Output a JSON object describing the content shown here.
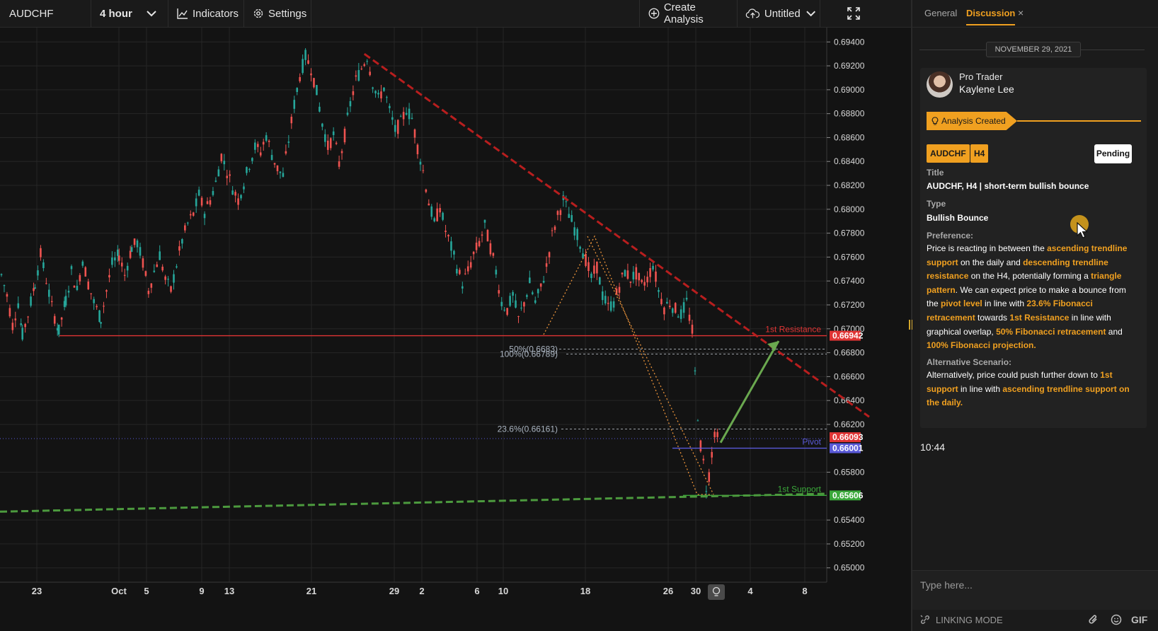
{
  "toolbar": {
    "symbol": "AUDCHF",
    "interval": "4 hour",
    "indicators": "Indicators",
    "settings": "Settings",
    "create_analysis": "Create Analysis",
    "layout_name": "Untitled"
  },
  "chart_data": {
    "type": "candlestick",
    "symbol": "AUDCHF",
    "timeframe": "4 hour",
    "y_ticks": [
      "0.69400",
      "0.69200",
      "0.69000",
      "0.68800",
      "0.68600",
      "0.68400",
      "0.68200",
      "0.68000",
      "0.67800",
      "0.67600",
      "0.67400",
      "0.67200",
      "0.67000",
      "0.66800",
      "0.66600",
      "0.66400",
      "0.66200",
      "0.65800",
      "0.65400",
      "0.65200",
      "0.65000"
    ],
    "x_ticks": [
      "23",
      "Oct",
      "5",
      "9",
      "13",
      "21",
      "29",
      "2",
      "6",
      "10",
      "18",
      "26",
      "30",
      "4",
      "8"
    ],
    "ylim": [
      0.6488,
      0.6952
    ],
    "path_points": [
      [
        0,
        0.6745
      ],
      [
        8,
        0.6728
      ],
      [
        16,
        0.6703
      ],
      [
        24,
        0.6722
      ],
      [
        30,
        0.6695
      ],
      [
        38,
        0.6712
      ],
      [
        48,
        0.6738
      ],
      [
        56,
        0.6762
      ],
      [
        64,
        0.6741
      ],
      [
        72,
        0.6718
      ],
      [
        82,
        0.6698
      ],
      [
        92,
        0.6724
      ],
      [
        100,
        0.6748
      ],
      [
        108,
        0.6732
      ],
      [
        116,
        0.6758
      ],
      [
        124,
        0.6738
      ],
      [
        132,
        0.6722
      ],
      [
        142,
        0.6708
      ],
      [
        150,
        0.6732
      ],
      [
        158,
        0.6754
      ],
      [
        168,
        0.6762
      ],
      [
        176,
        0.6745
      ],
      [
        186,
        0.6768
      ],
      [
        194,
        0.6772
      ],
      [
        202,
        0.6755
      ],
      [
        210,
        0.6732
      ],
      [
        218,
        0.6748
      ],
      [
        226,
        0.6762
      ],
      [
        234,
        0.6741
      ],
      [
        242,
        0.6732
      ],
      [
        250,
        0.6754
      ],
      [
        258,
        0.6774
      ],
      [
        266,
        0.6788
      ],
      [
        274,
        0.6796
      ],
      [
        282,
        0.6812
      ],
      [
        290,
        0.6798
      ],
      [
        298,
        0.6808
      ],
      [
        306,
        0.6822
      ],
      [
        314,
        0.6845
      ],
      [
        322,
        0.6832
      ],
      [
        330,
        0.6818
      ],
      [
        338,
        0.6808
      ],
      [
        346,
        0.6822
      ],
      [
        354,
        0.6838
      ],
      [
        362,
        0.6852
      ],
      [
        370,
        0.6848
      ],
      [
        378,
        0.6862
      ],
      [
        386,
        0.6846
      ],
      [
        394,
        0.6834
      ],
      [
        402,
        0.6828
      ],
      [
        410,
        0.6858
      ],
      [
        418,
        0.6888
      ],
      [
        426,
        0.6912
      ],
      [
        434,
        0.6928
      ],
      [
        442,
        0.6918
      ],
      [
        450,
        0.6898
      ],
      [
        458,
        0.6872
      ],
      [
        466,
        0.6852
      ],
      [
        474,
        0.6862
      ],
      [
        482,
        0.6838
      ],
      [
        490,
        0.6862
      ],
      [
        498,
        0.6888
      ],
      [
        506,
        0.6908
      ],
      [
        514,
        0.6918
      ],
      [
        522,
        0.6928
      ],
      [
        530,
        0.6906
      ],
      [
        538,
        0.6892
      ],
      [
        546,
        0.6902
      ],
      [
        554,
        0.6882
      ],
      [
        562,
        0.6866
      ],
      [
        570,
        0.6872
      ],
      [
        578,
        0.6884
      ],
      [
        586,
        0.6876
      ],
      [
        594,
        0.6852
      ],
      [
        602,
        0.6832
      ],
      [
        610,
        0.6806
      ],
      [
        618,
        0.6788
      ],
      [
        626,
        0.6802
      ],
      [
        634,
        0.6782
      ],
      [
        642,
        0.6768
      ],
      [
        650,
        0.6752
      ],
      [
        658,
        0.6738
      ],
      [
        666,
        0.6748
      ],
      [
        674,
        0.6762
      ],
      [
        682,
        0.6772
      ],
      [
        690,
        0.6786
      ],
      [
        698,
        0.6768
      ],
      [
        706,
        0.6748
      ],
      [
        714,
        0.6722
      ],
      [
        722,
        0.6716
      ],
      [
        730,
        0.6728
      ],
      [
        738,
        0.6708
      ],
      [
        746,
        0.6722
      ],
      [
        754,
        0.6738
      ],
      [
        762,
        0.6722
      ],
      [
        770,
        0.6734
      ],
      [
        778,
        0.6752
      ],
      [
        786,
        0.6778
      ],
      [
        794,
        0.6794
      ],
      [
        802,
        0.6808
      ],
      [
        810,
        0.6796
      ],
      [
        818,
        0.6784
      ],
      [
        826,
        0.6772
      ],
      [
        834,
        0.6758
      ],
      [
        842,
        0.6742
      ],
      [
        850,
        0.6752
      ],
      [
        858,
        0.6728
      ],
      [
        866,
        0.6718
      ],
      [
        874,
        0.6722
      ],
      [
        882,
        0.6736
      ],
      [
        890,
        0.6748
      ],
      [
        898,
        0.6742
      ],
      [
        906,
        0.6746
      ],
      [
        914,
        0.6736
      ],
      [
        922,
        0.6742
      ],
      [
        930,
        0.6754
      ],
      [
        938,
        0.6732
      ],
      [
        946,
        0.6718
      ],
      [
        954,
        0.6722
      ],
      [
        962,
        0.6716
      ],
      [
        970,
        0.6712
      ],
      [
        978,
        0.6722
      ],
      [
        986,
        0.6698
      ],
      [
        990,
        0.6662
      ],
      [
        994,
        0.6628
      ],
      [
        998,
        0.6602
      ],
      [
        1002,
        0.6588
      ],
      [
        1006,
        0.6568
      ],
      [
        1010,
        0.6578
      ],
      [
        1014,
        0.6596
      ],
      [
        1018,
        0.6614
      ],
      [
        1022,
        0.6608
      ],
      [
        1024,
        0.6609
      ]
    ],
    "levels": [
      {
        "name": "1st Resistance",
        "value": 0.66942,
        "label": "0.66942",
        "color": "#e03434"
      },
      {
        "name": "Pivot",
        "value": 0.66001,
        "label": "0.66001",
        "color": "#5a5ad8"
      },
      {
        "name": "1st Support",
        "value": 0.65606,
        "label": "0.65606",
        "color": "#3aa83a"
      }
    ],
    "current_price": {
      "value": 0.66093,
      "label": "0.66093",
      "color": "#e03434"
    },
    "fib_labels": [
      {
        "text": "50%(0.6683)",
        "value": 0.6683
      },
      {
        "text": "100%(0.66789)",
        "value": 0.66789
      },
      {
        "text": "23.6%(0.66161)",
        "value": 0.66161
      }
    ],
    "resistance_trendline": {
      "from": [
        520,
        0.693
      ],
      "to": [
        1180,
        0.665
      ],
      "color": "#b81e1e"
    },
    "support_trendline": {
      "from": [
        0,
        0.6547
      ],
      "to": [
        1180,
        0.6562
      ],
      "color": "#4c9a3e"
    },
    "projection_arrow": {
      "from": [
        1018,
        0.66
      ],
      "to": [
        1100,
        0.6688
      ],
      "color": "#6aa84f"
    }
  },
  "panel": {
    "tabs": [
      "General",
      "Discussion"
    ],
    "date": "NOVEMBER 29, 2021",
    "author_role": "Pro Trader",
    "author_name": "Kaylene Lee",
    "status_ribbon": "Analysis Created",
    "tags": [
      "AUDCHF",
      "H4"
    ],
    "pending": "Pending",
    "title_label": "Title",
    "title_value": "AUDCHF, H4 | short-term bullish bounce",
    "type_label": "Type",
    "type_value": "Bullish Bounce",
    "preference_label": "Preference:",
    "preference_text": [
      {
        "t": "Price is reacting in between the ",
        "h": false
      },
      {
        "t": "ascending trendline support",
        "h": true
      },
      {
        "t": " on the daily and ",
        "h": false
      },
      {
        "t": "descending trendline resistance",
        "h": true
      },
      {
        "t": " on the H4, potentially forming a ",
        "h": false
      },
      {
        "t": "triangle pattern",
        "h": true
      },
      {
        "t": ". We can expect price to make a bounce from the ",
        "h": false
      },
      {
        "t": "pivot level",
        "h": true
      },
      {
        "t": " in line with ",
        "h": false
      },
      {
        "t": "23.6% Fibonacci retracement",
        "h": true
      },
      {
        "t": " towards ",
        "h": false
      },
      {
        "t": "1st Resistance",
        "h": true
      },
      {
        "t": " in line with graphical overlap, ",
        "h": false
      },
      {
        "t": "50% Fibonacci retracement",
        "h": true
      },
      {
        "t": " and ",
        "h": false
      },
      {
        "t": "100% Fibonacci projection.",
        "h": true
      }
    ],
    "alt_label": "Alternative Scenario:",
    "alt_text": [
      {
        "t": "Alternatively, price could push further down to ",
        "h": false
      },
      {
        "t": "1st support",
        "h": true
      },
      {
        "t": " in line with ",
        "h": false
      },
      {
        "t": "ascending trendline support on the daily.",
        "h": true
      }
    ],
    "message_time": "10:44",
    "input_placeholder": "Type here...",
    "linking_mode": "LINKING MODE",
    "gif": "GIF"
  }
}
